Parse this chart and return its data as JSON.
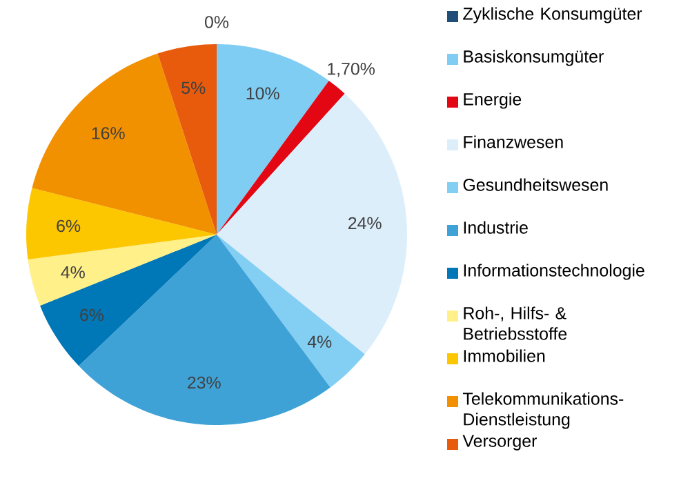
{
  "chart_data": {
    "type": "pie",
    "categories": [
      "Zyklische Konsumgüter",
      "Basiskonsumgüter",
      "Energie",
      "Finanzwesen",
      "Gesundheitswesen",
      "Industrie",
      "Informationstechnologie",
      "Roh-, Hilfs- & Betriebsstoffe",
      "Immobilien",
      "Telekommunikations-Dienstleistung",
      "Versorger"
    ],
    "values": [
      0,
      10,
      1.7,
      24,
      4,
      23,
      6,
      4,
      6,
      16,
      5
    ],
    "value_labels": [
      "0%",
      "10%",
      "1,70%",
      "24%",
      "4%",
      "23%",
      "6%",
      "4%",
      "6%",
      "16%",
      "5%"
    ],
    "colors": [
      "#1f4e79",
      "#7fcdf3",
      "#e30613",
      "#ddeefb",
      "#83cff3",
      "#3fa2d6",
      "#0077b6",
      "#fff08a",
      "#fdc700",
      "#f29100",
      "#e95b0c"
    ],
    "legend": "right"
  }
}
